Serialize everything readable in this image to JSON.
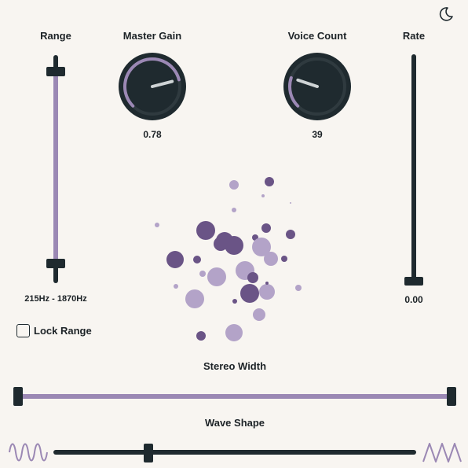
{
  "theme_toggle": {
    "icon": "moon-icon"
  },
  "range": {
    "label": "Range",
    "value_text": "215Hz - 1870Hz"
  },
  "master_gain": {
    "label": "Master Gain",
    "value": 0.78,
    "value_text": "0.78"
  },
  "voice_count": {
    "label": "Voice Count",
    "value": 39,
    "value_text": "39"
  },
  "rate": {
    "label": "Rate",
    "value": 0.0,
    "value_text": "0.00"
  },
  "lock_range": {
    "label": "Lock Range",
    "checked": false
  },
  "stereo_width": {
    "label": "Stereo Width",
    "value": 1.0
  },
  "wave_shape": {
    "label": "Wave Shape",
    "value": 0.25,
    "left_icon": "sine-wave-icon",
    "right_icon": "triangle-wave-icon"
  },
  "colors": {
    "background": "#f8f5f1",
    "dark": "#1f2a2f",
    "accent": "#9b88b4",
    "dot_dark": "#6a5486",
    "dot_light": "#b3a3c8"
  }
}
